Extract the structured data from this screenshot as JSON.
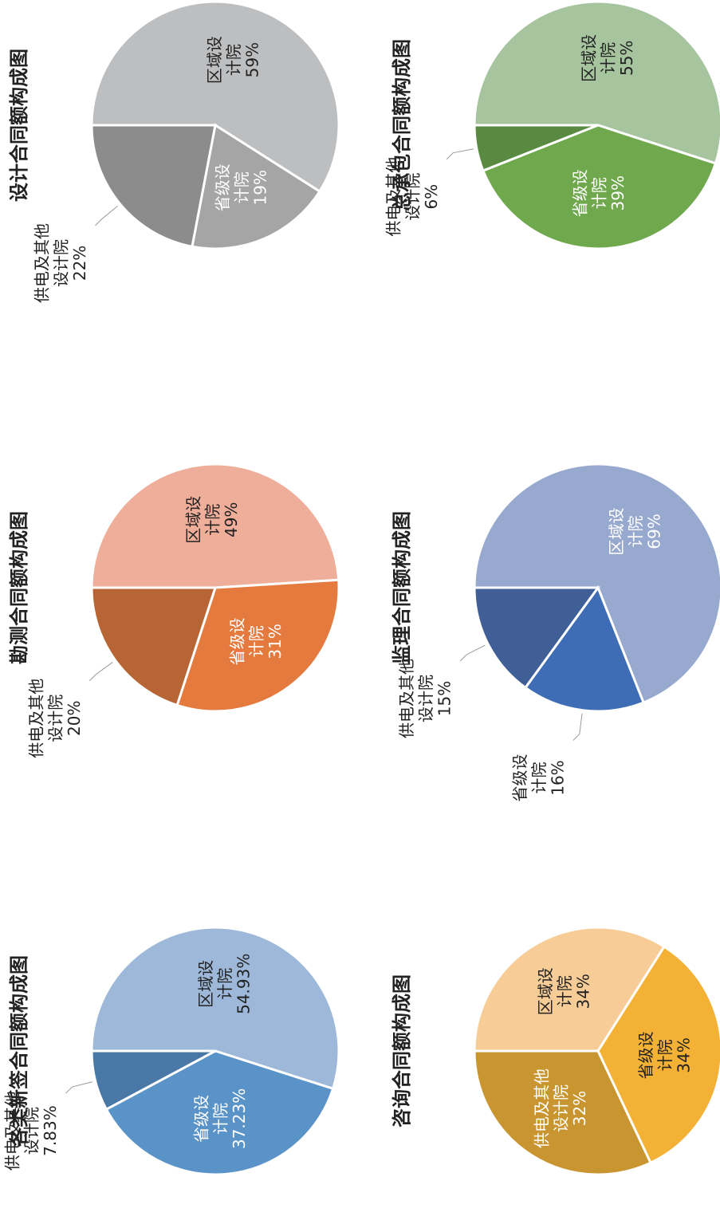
{
  "chart_data": [
    {
      "type": "pie",
      "title": "各类新签合同额构成图",
      "categories": [
        "区域设计院",
        "省级设计院",
        "供电及其他设计院"
      ],
      "values": [
        54.93,
        37.23,
        7.83
      ],
      "value_labels": [
        "54.93%",
        "37.23%",
        "7.83%"
      ],
      "colors": [
        "#9db8d8",
        "#5a93c8",
        "#4a78a6"
      ]
    },
    {
      "type": "pie",
      "title": "勘测合同额构成图",
      "categories": [
        "区域设计院",
        "省级设计院",
        "供电及其他设计院"
      ],
      "values": [
        49,
        31,
        20
      ],
      "value_labels": [
        "49%",
        "31%",
        "20%"
      ],
      "colors": [
        "#eeae9a",
        "#e57a3f",
        "#b86535"
      ]
    },
    {
      "type": "pie",
      "title": "设计合同额构成图",
      "categories": [
        "区域设计院",
        "省级设计院",
        "供电及其他设计院"
      ],
      "values": [
        59,
        19,
        22
      ],
      "value_labels": [
        "59%",
        "19%",
        "22%"
      ],
      "colors": [
        "#bdbec0",
        "#a5a5a5",
        "#8c8c8c"
      ]
    },
    {
      "type": "pie",
      "title": "咨询合同额构成图",
      "categories": [
        "区域设计院",
        "省级设计院",
        "供电及其他设计院"
      ],
      "values": [
        34,
        34,
        32
      ],
      "value_labels": [
        "34%",
        "34%",
        "32%"
      ],
      "colors": [
        "#f8cc96",
        "#f3b135",
        "#c99530"
      ]
    },
    {
      "type": "pie",
      "title": "监理合同额构成图",
      "categories": [
        "区域设计院",
        "省级设计院",
        "供电及其他设计院"
      ],
      "values": [
        69,
        16,
        15
      ],
      "value_labels": [
        "69%",
        "16%",
        "15%"
      ],
      "colors": [
        "#98a9cf",
        "#3f6db5",
        "#3f5f96"
      ]
    },
    {
      "type": "pie",
      "title": "总承包合同额构成图",
      "categories": [
        "区域设计院",
        "省级设计院",
        "供电及其他设计院"
      ],
      "values": [
        55,
        39,
        6
      ],
      "value_labels": [
        "55%",
        "39%",
        "6%"
      ],
      "colors": [
        "#a6c59e",
        "#70a84e",
        "#5a8a42"
      ]
    }
  ]
}
